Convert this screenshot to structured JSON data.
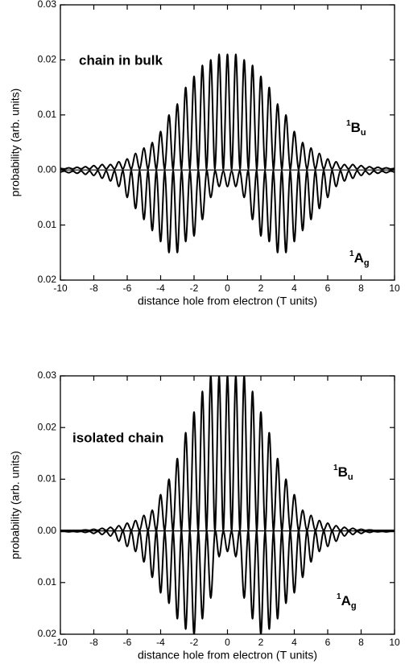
{
  "chart_data": [
    {
      "type": "line",
      "annotation": "chain in bulk",
      "xlabel": "distance hole from electron (T units)",
      "ylabel": "probability (arb. units)",
      "xlim": [
        -10,
        10
      ],
      "ylim": [
        -0.02,
        0.03
      ],
      "xticks": [
        -10,
        -8,
        -6,
        -4,
        -2,
        0,
        2,
        4,
        6,
        8,
        10
      ],
      "yticks": [
        {
          "value": -0.02,
          "label": "0.02"
        },
        {
          "value": -0.01,
          "label": "0.01"
        },
        {
          "value": 0,
          "label": "0.00"
        },
        0.01,
        0.02,
        0.03
      ],
      "x": [
        -10,
        -9.75,
        -9.5,
        -9.25,
        -9,
        -8.75,
        -8.5,
        -8.25,
        -8,
        -7.75,
        -7.5,
        -7.25,
        -7,
        -6.75,
        -6.5,
        -6.25,
        -6,
        -5.75,
        -5.5,
        -5.25,
        -5,
        -4.75,
        -4.5,
        -4.25,
        -4,
        -3.75,
        -3.5,
        -3.25,
        -3,
        -2.75,
        -2.5,
        -2.25,
        -2,
        -1.75,
        -1.5,
        -1.25,
        -1,
        -0.75,
        -0.5,
        -0.25,
        0,
        0.25,
        0.5,
        0.75,
        1,
        1.25,
        1.5,
        1.75,
        2,
        2.25,
        2.5,
        2.75,
        3,
        3.25,
        3.5,
        3.75,
        4,
        4.25,
        4.5,
        4.75,
        5,
        5.25,
        5.5,
        5.75,
        6,
        6.25,
        6.5,
        6.75,
        7,
        7.25,
        7.5,
        7.75,
        8,
        8.25,
        8.5,
        8.75,
        9,
        9.25,
        9.5,
        9.75,
        10
      ],
      "series": [
        {
          "name": {
            "sup": "1",
            "base": "B",
            "sub": "u"
          },
          "color": "#000000",
          "values": [
            0.0003,
            0.0002,
            0.0004,
            0.0002,
            0.0005,
            0.0002,
            0.0006,
            0.0002,
            0.0008,
            0.0002,
            0.001,
            0.0002,
            0.001,
            0.0002,
            0.0015,
            0.0002,
            0.002,
            0.0002,
            0.003,
            0.0002,
            0.004,
            0.0002,
            0.005,
            0.0002,
            0.007,
            0.0002,
            0.01,
            0.0002,
            0.012,
            0.0002,
            0.015,
            0.0002,
            0.017,
            0.0002,
            0.019,
            0.0002,
            0.02,
            0.0002,
            0.021,
            0.0002,
            0.021,
            0.0002,
            0.021,
            0.0002,
            0.02,
            0.0002,
            0.019,
            0.0002,
            0.017,
            0.0002,
            0.015,
            0.0002,
            0.012,
            0.0002,
            0.01,
            0.0002,
            0.007,
            0.0002,
            0.005,
            0.0002,
            0.004,
            0.0002,
            0.003,
            0.0002,
            0.002,
            0.0002,
            0.0015,
            0.0002,
            0.001,
            0.0002,
            0.001,
            0.0002,
            0.0008,
            0.0002,
            0.0006,
            0.0002,
            0.0005,
            0.0002,
            0.0004,
            0.0002,
            0.0003
          ]
        },
        {
          "name": {
            "sup": "1",
            "base": "A",
            "sub": "g"
          },
          "color": "#000000",
          "values": [
            -0.0004,
            -0.0002,
            -0.0005,
            -0.0002,
            -0.0006,
            -0.0002,
            -0.0008,
            -0.0002,
            -0.001,
            -0.0002,
            -0.0015,
            -0.0002,
            -0.002,
            -0.0002,
            -0.003,
            -0.0002,
            -0.005,
            -0.0002,
            -0.007,
            -0.0002,
            -0.009,
            -0.0002,
            -0.011,
            -0.0002,
            -0.013,
            -0.0002,
            -0.015,
            -0.0002,
            -0.015,
            -0.0002,
            -0.013,
            -0.0002,
            -0.012,
            -0.0002,
            -0.009,
            -0.0002,
            -0.005,
            -0.0002,
            -0.003,
            -0.0002,
            -0.003,
            -0.0002,
            -0.003,
            -0.0002,
            -0.005,
            -0.0002,
            -0.009,
            -0.0002,
            -0.012,
            -0.0002,
            -0.013,
            -0.0002,
            -0.015,
            -0.0002,
            -0.015,
            -0.0002,
            -0.013,
            -0.0002,
            -0.011,
            -0.0002,
            -0.009,
            -0.0002,
            -0.007,
            -0.0002,
            -0.005,
            -0.0002,
            -0.003,
            -0.0002,
            -0.002,
            -0.0002,
            -0.0015,
            -0.0002,
            -0.001,
            -0.0002,
            -0.0008,
            -0.0002,
            -0.0006,
            -0.0002,
            -0.0005,
            -0.0002,
            -0.0004
          ]
        }
      ]
    },
    {
      "type": "line",
      "annotation": "isolated chain",
      "xlabel": "distance hole from electron (T units)",
      "ylabel": "probability (arb. units)",
      "xlim": [
        -10,
        10
      ],
      "ylim": [
        -0.02,
        0.03
      ],
      "xticks": [
        -10,
        -8,
        -6,
        -4,
        -2,
        0,
        2,
        4,
        6,
        8,
        10
      ],
      "yticks": [
        {
          "value": -0.02,
          "label": "0.02"
        },
        {
          "value": -0.01,
          "label": "0.01"
        },
        {
          "value": 0,
          "label": "0.00"
        },
        0.01,
        0.02,
        0.03
      ],
      "x": [
        -10,
        -9.75,
        -9.5,
        -9.25,
        -9,
        -8.75,
        -8.5,
        -8.25,
        -8,
        -7.75,
        -7.5,
        -7.25,
        -7,
        -6.75,
        -6.5,
        -6.25,
        -6,
        -5.75,
        -5.5,
        -5.25,
        -5,
        -4.75,
        -4.5,
        -4.25,
        -4,
        -3.75,
        -3.5,
        -3.25,
        -3,
        -2.75,
        -2.5,
        -2.25,
        -2,
        -1.75,
        -1.5,
        -1.25,
        -1,
        -0.75,
        -0.5,
        -0.25,
        0,
        0.25,
        0.5,
        0.75,
        1,
        1.25,
        1.5,
        1.75,
        2,
        2.25,
        2.5,
        2.75,
        3,
        3.25,
        3.5,
        3.75,
        4,
        4.25,
        4.5,
        4.75,
        5,
        5.25,
        5.5,
        5.75,
        6,
        6.25,
        6.5,
        6.75,
        7,
        7.25,
        7.5,
        7.75,
        8,
        8.25,
        8.5,
        8.75,
        9,
        9.25,
        9.5,
        9.75,
        10
      ],
      "series": [
        {
          "name": {
            "sup": "1",
            "base": "B",
            "sub": "u"
          },
          "color": "#000000",
          "values": [
            0.0001,
            0.0001,
            0.0001,
            0.0001,
            0.0001,
            0.0001,
            0.0002,
            0.0001,
            0.0003,
            0.0001,
            0.0005,
            0.0001,
            0.0007,
            0.0001,
            0.001,
            0.0001,
            0.0015,
            0.0001,
            0.002,
            0.0001,
            0.003,
            0.0001,
            0.004,
            0.0001,
            0.007,
            0.0001,
            0.01,
            0.0001,
            0.014,
            0.0001,
            0.019,
            0.0001,
            0.023,
            0.0001,
            0.027,
            0.0001,
            0.03,
            0.0001,
            0.03,
            0.0001,
            0.03,
            0.0001,
            0.03,
            0.0001,
            0.03,
            0.0001,
            0.027,
            0.0001,
            0.023,
            0.0001,
            0.019,
            0.0001,
            0.014,
            0.0001,
            0.01,
            0.0001,
            0.007,
            0.0001,
            0.004,
            0.0001,
            0.003,
            0.0001,
            0.002,
            0.0001,
            0.0015,
            0.0001,
            0.001,
            0.0001,
            0.0007,
            0.0001,
            0.0005,
            0.0001,
            0.0003,
            0.0001,
            0.0002,
            0.0001,
            0.0001,
            0.0001,
            0.0001,
            0.0001,
            0.0001
          ]
        },
        {
          "name": {
            "sup": "1",
            "base": "A",
            "sub": "g"
          },
          "color": "#000000",
          "values": [
            -0.0001,
            -0.0001,
            -0.0002,
            -0.0001,
            -0.0002,
            -0.0001,
            -0.0003,
            -0.0001,
            -0.0005,
            -0.0001,
            -0.0007,
            -0.0001,
            -0.001,
            -0.0001,
            -0.002,
            -0.0001,
            -0.003,
            -0.0001,
            -0.004,
            -0.0001,
            -0.006,
            -0.0001,
            -0.009,
            -0.0001,
            -0.012,
            -0.0001,
            -0.014,
            -0.0001,
            -0.017,
            -0.0001,
            -0.019,
            -0.0001,
            -0.02,
            -0.0001,
            -0.017,
            -0.0001,
            -0.013,
            -0.0001,
            -0.005,
            -0.0001,
            -0.004,
            -0.0001,
            -0.005,
            -0.0001,
            -0.013,
            -0.0001,
            -0.017,
            -0.0001,
            -0.02,
            -0.0001,
            -0.019,
            -0.0001,
            -0.017,
            -0.0001,
            -0.014,
            -0.0001,
            -0.012,
            -0.0001,
            -0.009,
            -0.0001,
            -0.006,
            -0.0001,
            -0.004,
            -0.0001,
            -0.003,
            -0.0001,
            -0.002,
            -0.0001,
            -0.001,
            -0.0001,
            -0.0007,
            -0.0001,
            -0.0005,
            -0.0001,
            -0.0003,
            -0.0001,
            -0.0002,
            -0.0001,
            -0.0002,
            -0.0001,
            -0.0001
          ]
        }
      ]
    }
  ]
}
